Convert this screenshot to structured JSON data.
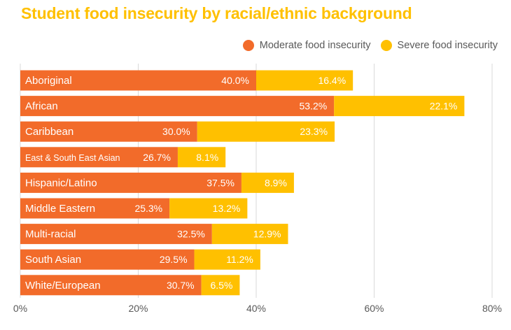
{
  "chart_data": {
    "type": "bar",
    "orientation": "horizontal",
    "stacked": true,
    "title": "Student food insecurity by racial/ethnic background",
    "categories": [
      "Aboriginal",
      "African",
      "Caribbean",
      "East & South East Asian",
      "Hispanic/Latino",
      "Middle Eastern",
      "Multi-racial",
      "South Asian",
      "White/European"
    ],
    "series": [
      {
        "name": "Moderate food insecurity",
        "color": "#F26B2A",
        "values": [
          40.0,
          53.2,
          30.0,
          26.7,
          37.5,
          25.3,
          32.5,
          29.5,
          30.7
        ],
        "labels": [
          "40.0%",
          "53.2%",
          "30.0%",
          "26.7%",
          "37.5%",
          "25.3%",
          "32.5%",
          "29.5%",
          "30.7%"
        ]
      },
      {
        "name": "Severe food insecurity",
        "color": "#FFC000",
        "values": [
          16.4,
          22.1,
          23.3,
          8.1,
          8.9,
          13.2,
          12.9,
          11.2,
          6.5
        ],
        "labels": [
          "16.4%",
          "22.1%",
          "23.3%",
          "8.1%",
          "8.9%",
          "13.2%",
          "12.9%",
          "11.2%",
          "6.5%"
        ]
      }
    ],
    "xlim": [
      0,
      80
    ],
    "xticks": [
      0,
      20,
      40,
      60,
      80
    ],
    "xtick_labels": [
      "0%",
      "20%",
      "40%",
      "60%",
      "80%"
    ],
    "xlabel": "",
    "ylabel": "",
    "grid": true,
    "legend_position": "top-right"
  },
  "colors": {
    "title": "#FFC000",
    "grid": "#D9D9D9",
    "legend_text": "#595959"
  }
}
